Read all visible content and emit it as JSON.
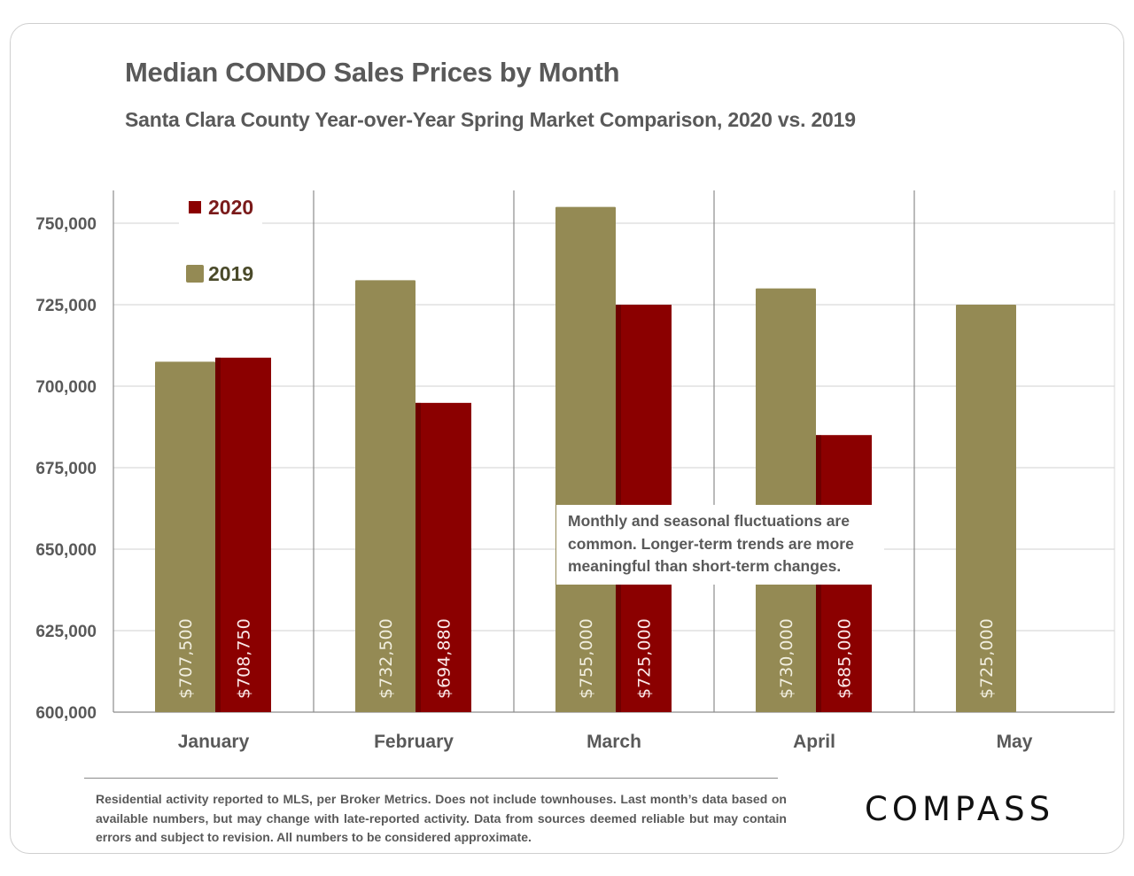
{
  "header": {
    "title": "Median CONDO Sales Prices by Month",
    "subtitle": "Santa Clara County Year-over-Year Spring Market Comparison, 2020 vs. 2019"
  },
  "annotation": "Monthly and seasonal fluctuations are common. Longer-term trends are more meaningful than short-term changes.",
  "footnote": "Residential activity reported to MLS, per Broker Metrics. Does not include townhouses. Last month’s data based on available numbers, but may change with late-reported activity. Data from sources deemed reliable but may contain errors and subject to revision. All numbers to be considered approximate.",
  "logo": "COMPASS",
  "colors": {
    "series_2019": "#948a54",
    "series_2020": "#8b0000",
    "grid": "#d9d9d9",
    "axis_text": "#595959"
  },
  "chart_data": {
    "type": "bar",
    "title": "Median CONDO Sales Prices by Month",
    "subtitle": "Santa Clara County Year-over-Year Spring Market Comparison, 2020 vs. 2019",
    "xlabel": "",
    "ylabel": "",
    "categories": [
      "January",
      "February",
      "March",
      "April",
      "May"
    ],
    "series": [
      {
        "name": "2019",
        "values": [
          707500,
          732500,
          755000,
          730000,
          725000
        ],
        "labels": [
          "$707,500",
          "$732,500",
          "$755,000",
          "$730,000",
          "$725,000"
        ]
      },
      {
        "name": "2020",
        "values": [
          708750,
          694880,
          725000,
          685000,
          null
        ],
        "labels": [
          "$708,750",
          "$694,880",
          "$725,000",
          "$685,000",
          null
        ]
      }
    ],
    "ylim": [
      600000,
      760000
    ],
    "yticks": [
      600000,
      625000,
      650000,
      675000,
      700000,
      725000,
      750000
    ],
    "ytick_labels": [
      "600,000",
      "625,000",
      "650,000",
      "675,000",
      "700,000",
      "725,000",
      "750,000"
    ],
    "legend": {
      "entries": [
        "2020",
        "2019"
      ],
      "placement": "top-left"
    },
    "grid": true
  }
}
